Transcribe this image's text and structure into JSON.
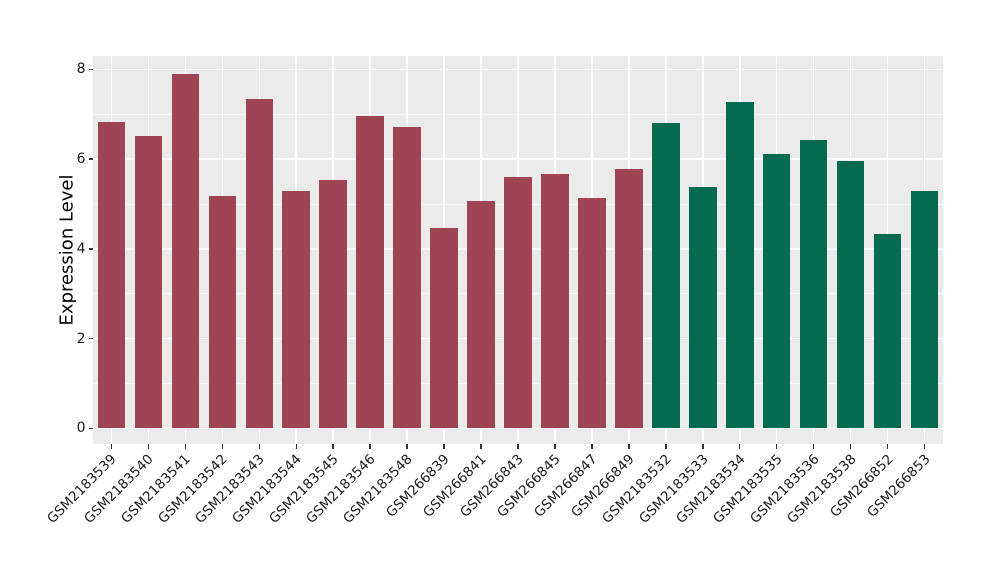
{
  "chart_data": {
    "type": "bar",
    "title": "",
    "xlabel": "",
    "ylabel": "Expression Level",
    "legend": "none",
    "grid": true,
    "panel_background": "#EBEBEB",
    "gridline_color": "#FFFFFF",
    "tick_color": "#333333",
    "text_color": "#1A1A1A",
    "ylim": [
      -0.35,
      8.3
    ],
    "y_major_ticks": [
      0,
      2,
      4,
      6,
      8
    ],
    "y_minor_ticks": [
      1,
      3,
      5,
      7
    ],
    "categories": [
      "GSM2183539",
      "GSM2183540",
      "GSM2183541",
      "GSM2183542",
      "GSM2183543",
      "GSM2183544",
      "GSM2183545",
      "GSM2183546",
      "GSM2183548",
      "GSM266839",
      "GSM266841",
      "GSM266843",
      "GSM266845",
      "GSM266847",
      "GSM266849",
      "GSM2183532",
      "GSM2183533",
      "GSM2183534",
      "GSM2183535",
      "GSM2183536",
      "GSM2183538",
      "GSM266852",
      "GSM266853"
    ],
    "values": [
      6.83,
      6.52,
      7.89,
      5.18,
      7.35,
      5.29,
      5.54,
      6.97,
      6.71,
      4.47,
      5.07,
      5.6,
      5.67,
      5.14,
      5.78,
      6.81,
      5.38,
      7.28,
      6.12,
      6.43,
      5.95,
      4.33,
      5.29
    ],
    "bar_groups": [
      "group1",
      "group1",
      "group1",
      "group1",
      "group1",
      "group1",
      "group1",
      "group1",
      "group1",
      "group1",
      "group1",
      "group1",
      "group1",
      "group1",
      "group1",
      "group2",
      "group2",
      "group2",
      "group2",
      "group2",
      "group2",
      "group2",
      "group2"
    ],
    "group_colors": {
      "group1": "#9E4452",
      "group2": "#046B4F"
    }
  }
}
